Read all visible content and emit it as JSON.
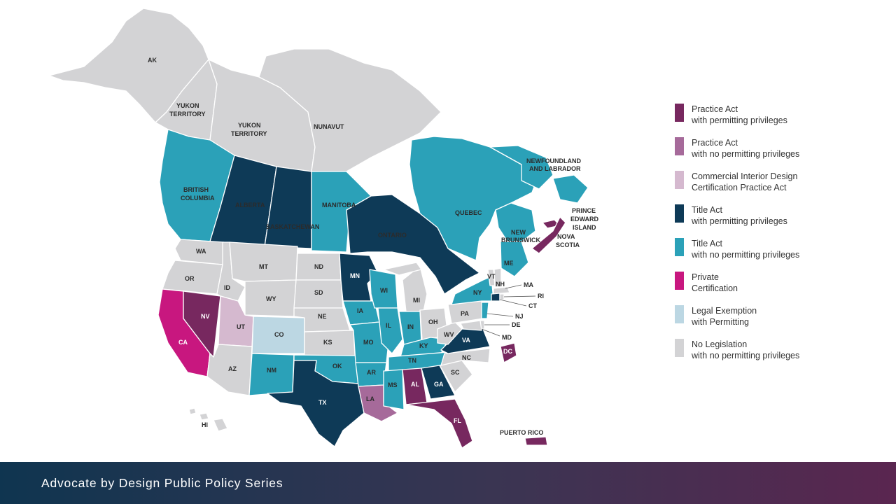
{
  "colors": {
    "practice_permit": "#77285f",
    "practice_no_permit": "#a66a9a",
    "commercial": "#d5b9cf",
    "title_permit": "#0e3a57",
    "title_no_permit": "#2ba1b8",
    "private": "#c8177f",
    "legal_exemption": "#bcd7e3",
    "no_legislation": "#d3d3d5"
  },
  "legend": [
    {
      "line1": "Practice Act",
      "line2": "with permitting privileges",
      "color": "#77285f"
    },
    {
      "line1": "Practice Act",
      "line2": "with no permitting privileges",
      "color": "#a66a9a"
    },
    {
      "line1": "Commercial Interior Design",
      "line2": "Certification Practice Act",
      "color": "#d5b9cf"
    },
    {
      "line1": "Title Act",
      "line2": "with permitting privileges",
      "color": "#0e3a57"
    },
    {
      "line1": "Title Act",
      "line2": "with no permitting privileges",
      "color": "#2ba1b8"
    },
    {
      "line1": "Private",
      "line2": "Certification",
      "color": "#c8177f"
    },
    {
      "line1": "Legal Exemption",
      "line2": "with Permitting",
      "color": "#bcd7e3"
    },
    {
      "line1": "No Legislation",
      "line2": "with no permitting privileges",
      "color": "#d3d3d5"
    }
  ],
  "map_labels": {
    "ak": "AK",
    "yukon1": "YUKON",
    "yukon1b": "TERRITORY",
    "yukon2": "YUKON",
    "yukon2b": "TERRITORY",
    "nunavut": "NUNAVUT",
    "bc1": "BRITISH",
    "bc2": "COLUMBIA",
    "alberta": "ALBERTA",
    "sask": "SASKATCHEWAN",
    "manitoba": "MANITOBA",
    "ontario": "ONTARIO",
    "quebec": "QUEBEC",
    "nl1": "NEWFOUNDLAND",
    "nl2": "AND LABRADOR",
    "nb1": "NEW",
    "nb2": "BRUNSWICK",
    "pei1": "PRINCE",
    "pei2": "EDWARD",
    "pei3": "ISLAND",
    "ns1": "NOVA",
    "ns2": "SCOTIA",
    "wa": "WA",
    "or": "OR",
    "ca": "CA",
    "nv": "NV",
    "id": "ID",
    "mt": "MT",
    "wy": "WY",
    "ut": "UT",
    "co": "CO",
    "az": "AZ",
    "nm": "NM",
    "nd": "ND",
    "sd": "SD",
    "ne": "NE",
    "ks": "KS",
    "ok": "OK",
    "tx": "TX",
    "mn": "MN",
    "ia": "IA",
    "mo": "MO",
    "ar": "AR",
    "la": "LA",
    "wi": "WI",
    "il": "IL",
    "mi": "MI",
    "in": "IN",
    "oh": "OH",
    "ky": "KY",
    "tn": "TN",
    "ms": "MS",
    "al": "AL",
    "ga": "GA",
    "fl": "FL",
    "sc": "SC",
    "nc": "NC",
    "va": "VA",
    "wv": "WV",
    "pa": "PA",
    "ny": "NY",
    "vt": "VT",
    "nh": "NH",
    "me": "ME",
    "ma": "MA",
    "ri": "RI",
    "ct": "CT",
    "nj": "NJ",
    "de": "DE",
    "md": "MD",
    "dc": "DC",
    "hi": "HI",
    "pr": "PUERTO RICO"
  },
  "footer": {
    "title": "Advocate by Design Public Policy Series"
  }
}
